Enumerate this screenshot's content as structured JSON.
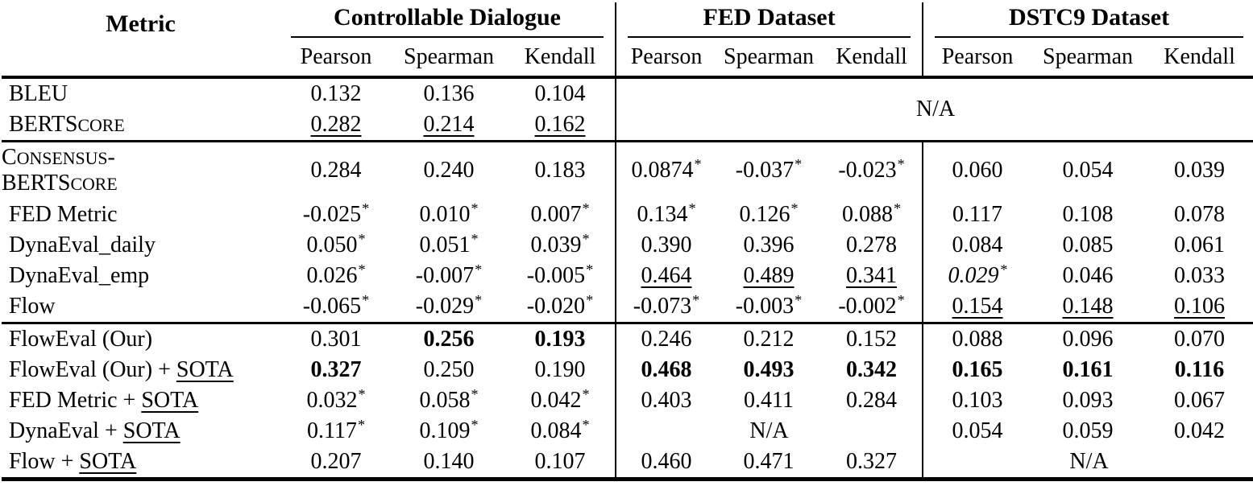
{
  "colors": {
    "text": "#000000",
    "background": "#ffffff",
    "rules": "#000000"
  },
  "header": {
    "metric_label": "Metric",
    "groups": [
      {
        "label": "Controllable Dialogue",
        "cols": [
          "Pearson",
          "Spearman",
          "Kendall"
        ]
      },
      {
        "label": "FED Dataset",
        "cols": [
          "Pearson",
          "Spearman",
          "Kendall"
        ]
      },
      {
        "label": "DSTC9 Dataset",
        "cols": [
          "Pearson",
          "Spearman",
          "Kendall"
        ]
      }
    ]
  },
  "legend": {
    "star_means": "superscript asterisk marker",
    "na": "N/A"
  },
  "sections": [
    {
      "rows": [
        {
          "label": [
            {
              "t": "BLEU"
            }
          ],
          "cells": [
            {
              "v": "0.132"
            },
            {
              "v": "0.136"
            },
            {
              "v": "0.104"
            },
            {
              "v": "N/A",
              "colspan": 6,
              "rowspan": 2
            }
          ]
        },
        {
          "label": [
            {
              "t": "BERTScore",
              "sc": true
            }
          ],
          "cells": [
            {
              "v": "0.282",
              "u": true
            },
            {
              "v": "0.214",
              "u": true
            },
            {
              "v": "0.162",
              "u": true
            }
          ]
        }
      ]
    },
    {
      "rows": [
        {
          "label": [
            {
              "t": "Consensus-",
              "sc": true
            },
            {
              "br": true
            },
            {
              "t": "BERTScore",
              "sc": true
            }
          ],
          "cells": [
            {
              "v": "0.284"
            },
            {
              "v": "0.240"
            },
            {
              "v": "0.183"
            },
            {
              "v": "0.0874",
              "star": true
            },
            {
              "v": "-0.037",
              "star": true
            },
            {
              "v": "-0.023",
              "star": true
            },
            {
              "v": "0.060"
            },
            {
              "v": "0.054"
            },
            {
              "v": "0.039"
            }
          ]
        },
        {
          "label": [
            {
              "t": "FED Metric"
            }
          ],
          "cells": [
            {
              "v": "-0.025",
              "star": true
            },
            {
              "v": "0.010",
              "star": true
            },
            {
              "v": "0.007",
              "star": true
            },
            {
              "v": "0.134",
              "star": true
            },
            {
              "v": "0.126",
              "star": true
            },
            {
              "v": "0.088",
              "star": true
            },
            {
              "v": "0.117"
            },
            {
              "v": "0.108"
            },
            {
              "v": "0.078"
            }
          ]
        },
        {
          "label": [
            {
              "t": "DynaEval_daily"
            }
          ],
          "cells": [
            {
              "v": "0.050",
              "star": true
            },
            {
              "v": "0.051",
              "star": true
            },
            {
              "v": "0.039",
              "star": true
            },
            {
              "v": "0.390"
            },
            {
              "v": "0.396"
            },
            {
              "v": "0.278"
            },
            {
              "v": "0.084"
            },
            {
              "v": "0.085"
            },
            {
              "v": "0.061"
            }
          ]
        },
        {
          "label": [
            {
              "t": "DynaEval_emp"
            }
          ],
          "cells": [
            {
              "v": "0.026",
              "star": true
            },
            {
              "v": "-0.007",
              "star": true
            },
            {
              "v": "-0.005",
              "star": true
            },
            {
              "v": "0.464",
              "u": true
            },
            {
              "v": "0.489",
              "u": true
            },
            {
              "v": "0.341",
              "u": true
            },
            {
              "v": "0.029",
              "star": true,
              "i": true
            },
            {
              "v": "0.046"
            },
            {
              "v": "0.033"
            }
          ]
        },
        {
          "label": [
            {
              "t": "Flow"
            }
          ],
          "cells": [
            {
              "v": "-0.065",
              "star": true
            },
            {
              "v": "-0.029",
              "star": true
            },
            {
              "v": "-0.020",
              "star": true
            },
            {
              "v": "-0.073",
              "star": true
            },
            {
              "v": "-0.003",
              "star": true
            },
            {
              "v": "-0.002",
              "star": true
            },
            {
              "v": "0.154",
              "u": true
            },
            {
              "v": "0.148",
              "u": true
            },
            {
              "v": "0.106",
              "u": true
            }
          ]
        }
      ]
    },
    {
      "rows": [
        {
          "label": [
            {
              "t": "FlowEval (Our)"
            }
          ],
          "cells": [
            {
              "v": "0.301"
            },
            {
              "v": "0.256",
              "b": true
            },
            {
              "v": "0.193",
              "b": true
            },
            {
              "v": "0.246"
            },
            {
              "v": "0.212"
            },
            {
              "v": "0.152"
            },
            {
              "v": "0.088"
            },
            {
              "v": "0.096"
            },
            {
              "v": "0.070"
            }
          ]
        },
        {
          "label": [
            {
              "t": "FlowEval (Our) + "
            },
            {
              "t": "SOTA",
              "u": true
            }
          ],
          "cells": [
            {
              "v": "0.327",
              "b": true
            },
            {
              "v": "0.250"
            },
            {
              "v": "0.190"
            },
            {
              "v": "0.468",
              "b": true
            },
            {
              "v": "0.493",
              "b": true
            },
            {
              "v": "0.342",
              "b": true
            },
            {
              "v": "0.165",
              "b": true
            },
            {
              "v": "0.161",
              "b": true
            },
            {
              "v": "0.116",
              "b": true
            }
          ]
        },
        {
          "label": [
            {
              "t": "FED Metric + "
            },
            {
              "t": "SOTA",
              "u": true
            }
          ],
          "cells": [
            {
              "v": "0.032",
              "star": true
            },
            {
              "v": "0.058",
              "star": true
            },
            {
              "v": "0.042",
              "star": true
            },
            {
              "v": "0.403"
            },
            {
              "v": "0.411"
            },
            {
              "v": "0.284"
            },
            {
              "v": "0.103"
            },
            {
              "v": "0.093"
            },
            {
              "v": "0.067"
            }
          ]
        },
        {
          "label": [
            {
              "t": "DynaEval + "
            },
            {
              "t": "SOTA",
              "u": true
            }
          ],
          "cells": [
            {
              "v": "0.117",
              "star": true
            },
            {
              "v": "0.109",
              "star": true
            },
            {
              "v": "0.084",
              "star": true
            },
            {
              "v": "N/A",
              "colspan": 3
            },
            {
              "v": "0.054"
            },
            {
              "v": "0.059"
            },
            {
              "v": "0.042"
            }
          ]
        },
        {
          "label": [
            {
              "t": "Flow + "
            },
            {
              "t": "SOTA",
              "u": true
            }
          ],
          "cells": [
            {
              "v": "0.207"
            },
            {
              "v": "0.140"
            },
            {
              "v": "0.107"
            },
            {
              "v": "0.460"
            },
            {
              "v": "0.471"
            },
            {
              "v": "0.327"
            },
            {
              "v": "N/A",
              "colspan": 3
            }
          ]
        }
      ]
    }
  ]
}
